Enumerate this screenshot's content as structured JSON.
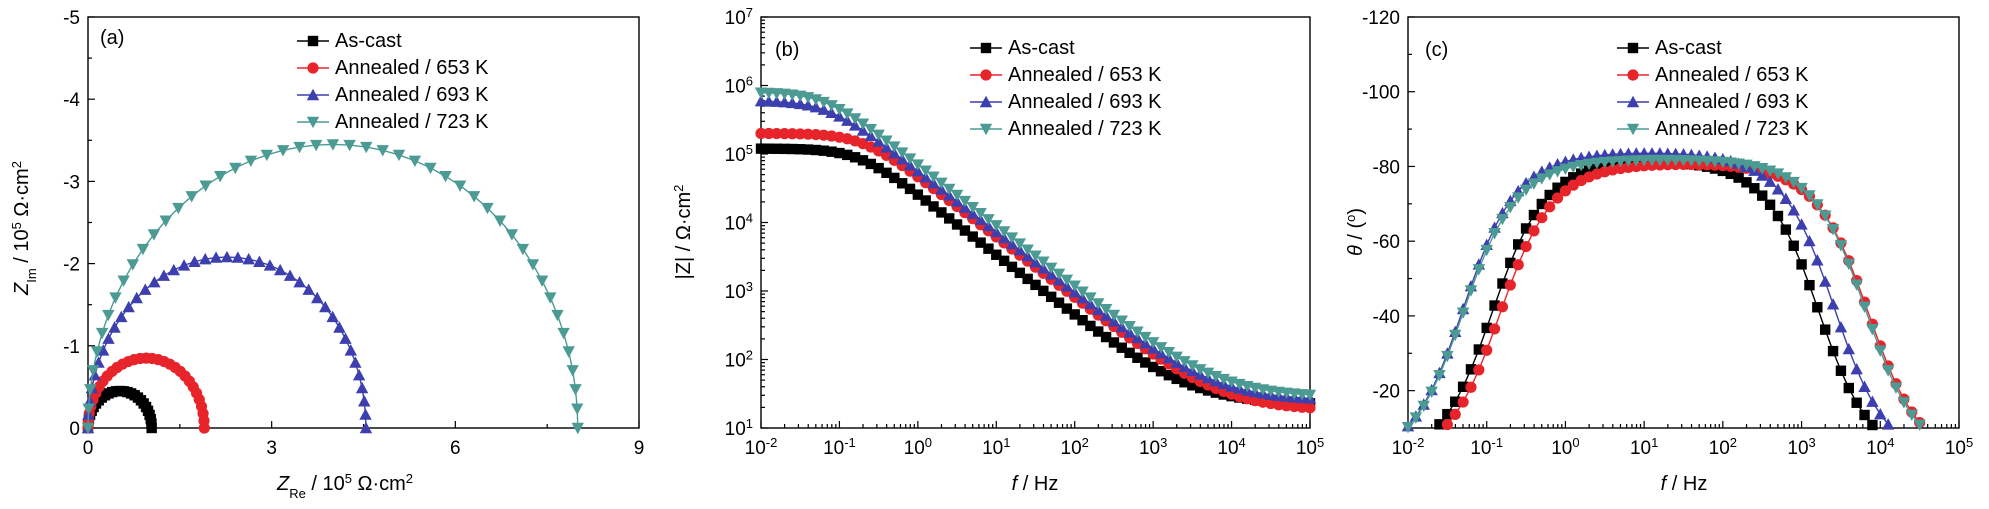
{
  "figure": {
    "panels": [
      "a",
      "b",
      "c"
    ]
  },
  "colors": {
    "As-cast": "#000000",
    "Annealed / 653 K": "#e8242b",
    "Annealed / 693 K": "#3d3fae",
    "Annealed / 723 K": "#4b9b94"
  },
  "chart_data": [
    {
      "type": "scatter",
      "panel_label": "(a)",
      "xlabel": {
        "main": "Z",
        "sub": "Re",
        "rest": " / 10",
        "sup": "5",
        "unit": " Ω·cm",
        "unit_sup": "2"
      },
      "ylabel": {
        "main": "Z",
        "sub": "Im",
        "rest": " / 10",
        "sup": "5",
        "unit": " Ω·cm",
        "unit_sup": "2"
      },
      "xlim": [
        0,
        9
      ],
      "ylim": [
        0,
        -5
      ],
      "xticks": [
        "0",
        "3",
        "6",
        "9"
      ],
      "yticks": [
        "0",
        "-1",
        "-2",
        "-3",
        "-4",
        "-5"
      ],
      "legend_position": "top-right",
      "series": [
        {
          "name": "As-cast",
          "marker": "square",
          "center_x": 0.52,
          "radius": 0.52,
          "peak_y": -0.45,
          "points": 26
        },
        {
          "name": "Annealed / 653 K",
          "marker": "circle",
          "center_x": 0.95,
          "radius": 0.95,
          "peak_y": -0.85,
          "points": 30
        },
        {
          "name": "Annealed / 693 K",
          "marker": "triangle-up",
          "center_x": 2.27,
          "radius": 2.27,
          "peak_y": -2.08,
          "points": 40
        },
        {
          "name": "Annealed / 723 K",
          "marker": "triangle-down",
          "center_x": 4.0,
          "radius": 4.0,
          "peak_y": -3.45,
          "points": 46
        }
      ]
    },
    {
      "type": "line",
      "panel_label": "(b)",
      "xlabel": {
        "main": "f",
        "rest": " / Hz"
      },
      "ylabel": {
        "text": "|Z| / Ω·cm",
        "sup": "2"
      },
      "xscale": "log",
      "yscale": "log",
      "xlim": [
        0.01,
        100000
      ],
      "ylim": [
        10,
        10000000
      ],
      "xticks": [
        {
          "b": "10",
          "e": "-2"
        },
        {
          "b": "10",
          "e": "-1"
        },
        {
          "b": "10",
          "e": "0"
        },
        {
          "b": "10",
          "e": "1"
        },
        {
          "b": "10",
          "e": "2"
        },
        {
          "b": "10",
          "e": "3"
        },
        {
          "b": "10",
          "e": "4"
        },
        {
          "b": "10",
          "e": "5"
        }
      ],
      "yticks": [
        {
          "b": "10",
          "e": "1"
        },
        {
          "b": "10",
          "e": "2"
        },
        {
          "b": "10",
          "e": "3"
        },
        {
          "b": "10",
          "e": "4"
        },
        {
          "b": "10",
          "e": "5"
        },
        {
          "b": "10",
          "e": "6"
        },
        {
          "b": "10",
          "e": "7"
        }
      ],
      "legend_position": "top-right",
      "series": [
        {
          "name": "As-cast",
          "marker": "square",
          "low_freq_Z": 120000,
          "high_freq_Z": 22,
          "corner_freq_hz": 0.18
        },
        {
          "name": "Annealed / 653 K",
          "marker": "circle",
          "low_freq_Z": 200000,
          "high_freq_Z": 18,
          "corner_freq_hz": 0.2
        },
        {
          "name": "Annealed / 693 K",
          "marker": "triangle-up",
          "low_freq_Z": 600000,
          "high_freq_Z": 25,
          "corner_freq_hz": 0.07
        },
        {
          "name": "Annealed / 723 K",
          "marker": "triangle-down",
          "low_freq_Z": 800000,
          "high_freq_Z": 28,
          "corner_freq_hz": 0.065
        }
      ]
    },
    {
      "type": "line",
      "panel_label": "(c)",
      "xlabel": {
        "main": "f",
        "rest": " / Hz"
      },
      "ylabel": {
        "main": "θ",
        "rest": " / (",
        "sup": "o",
        "tail": ")"
      },
      "xscale": "log",
      "xlim": [
        0.01,
        100000
      ],
      "ylim": [
        -10,
        -120
      ],
      "xticks": [
        {
          "b": "10",
          "e": "-2"
        },
        {
          "b": "10",
          "e": "-1"
        },
        {
          "b": "10",
          "e": "0"
        },
        {
          "b": "10",
          "e": "1"
        },
        {
          "b": "10",
          "e": "2"
        },
        {
          "b": "10",
          "e": "3"
        },
        {
          "b": "10",
          "e": "4"
        },
        {
          "b": "10",
          "e": "5"
        }
      ],
      "yticks": [
        "-20",
        "-40",
        "-60",
        "-80",
        "-100",
        "-120"
      ],
      "legend_position": "top-right",
      "series": [
        {
          "name": "As-cast",
          "marker": "square",
          "plateau_deg": -82,
          "low_edge_hz": 0.028,
          "high_edge_hz": 7000
        },
        {
          "name": "Annealed / 653 K",
          "marker": "circle",
          "plateau_deg": -81,
          "low_edge_hz": 0.035,
          "high_edge_hz": 30000
        },
        {
          "name": "Annealed / 693 K",
          "marker": "triangle-up",
          "plateau_deg": -84,
          "low_edge_hz": 0.012,
          "high_edge_hz": 11000
        },
        {
          "name": "Annealed / 723 K",
          "marker": "triangle-down",
          "plateau_deg": -82,
          "low_edge_hz": 0.012,
          "high_edge_hz": 28000
        }
      ]
    }
  ]
}
